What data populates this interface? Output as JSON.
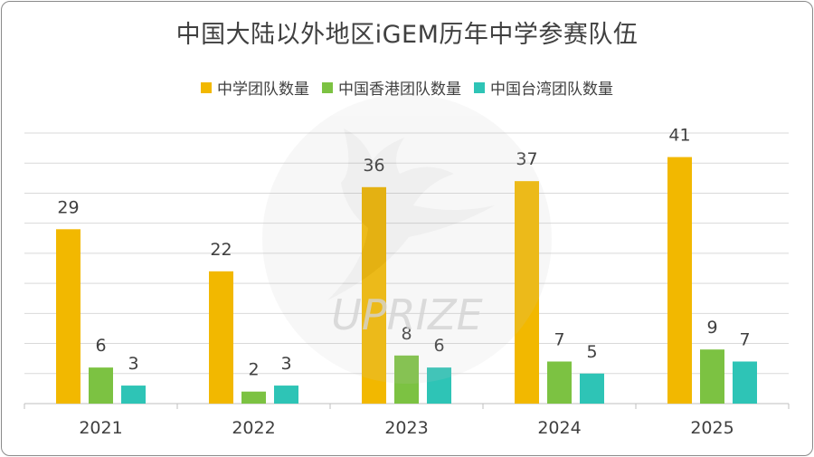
{
  "chart_data": {
    "type": "bar",
    "title": "中国大陆以外地区iGEM历年中学参赛队伍",
    "categories": [
      "2021",
      "2022",
      "2023",
      "2024",
      "2025"
    ],
    "series": [
      {
        "name": "中学团队数量",
        "values": [
          29,
          22,
          36,
          37,
          41
        ],
        "color": "#f2b800"
      },
      {
        "name": "中国香港团队数量",
        "values": [
          6,
          2,
          8,
          7,
          9
        ],
        "color": "#7cc242"
      },
      {
        "name": "中国台湾团队数量",
        "values": [
          3,
          3,
          6,
          5,
          7
        ],
        "color": "#2ec4b6"
      }
    ],
    "ylim": [
      0,
      45
    ],
    "y_gridline_step": 5,
    "grid": true,
    "legend_position": "top-center",
    "data_labels": true
  },
  "watermark": {
    "text": "UPRIZE",
    "icon": "leaping-deer-logo"
  }
}
